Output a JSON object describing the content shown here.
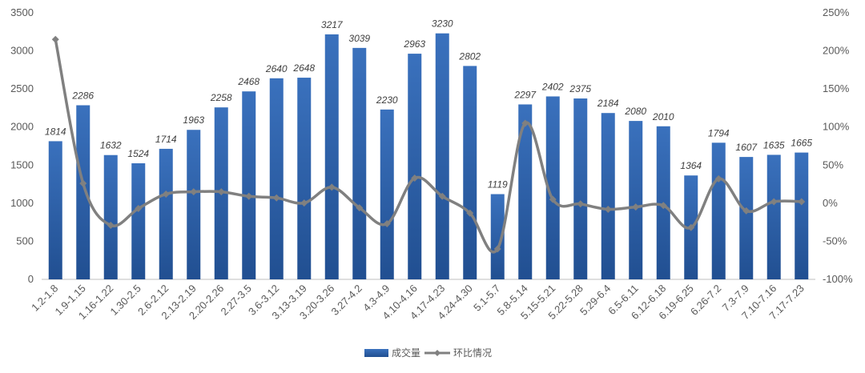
{
  "chart_data": {
    "type": "bar",
    "categories": [
      "1.2-1.8",
      "1.9-1.15",
      "1.16-1.22",
      "1.30-2.5",
      "2.6-2.12",
      "2.13-2.19",
      "2.20-2.26",
      "2.27-3.5",
      "3.6-3.12",
      "3.13-3.19",
      "3.20-3.26",
      "3.27-4.2",
      "4.3-4.9",
      "4.10-4.16",
      "4.17-4.23",
      "4.24-4.30",
      "5.1-5.7",
      "5.8-5.14",
      "5.15-5.21",
      "5.22-5.28",
      "5.29-6.4",
      "6.5-6.11",
      "6.12-6.18",
      "6.19-6.25",
      "6.26-7.2",
      "7.3-7.9",
      "7.10-7.16",
      "7.17-7.23"
    ],
    "series": [
      {
        "name": "成交量",
        "type": "bar",
        "axis": "left",
        "color": "#2E64AE",
        "values": [
          1814,
          2286,
          1632,
          1524,
          1714,
          1963,
          2258,
          2468,
          2640,
          2648,
          3217,
          3039,
          2230,
          2963,
          3230,
          2802,
          1119,
          2297,
          2402,
          2375,
          2184,
          2080,
          2010,
          1364,
          1794,
          1607,
          1635,
          1665
        ]
      },
      {
        "name": "环比情况",
        "type": "line",
        "axis": "right",
        "color": "#808080",
        "values": [
          2.15,
          0.26,
          -0.29,
          -0.07,
          0.12,
          0.15,
          0.15,
          0.09,
          0.07,
          0.003,
          0.21,
          -0.06,
          -0.27,
          0.33,
          0.09,
          -0.13,
          -0.6,
          1.05,
          0.05,
          -0.01,
          -0.08,
          -0.05,
          -0.03,
          -0.32,
          0.32,
          -0.1,
          0.02,
          0.02
        ]
      }
    ],
    "y_left": {
      "min": 0,
      "max": 3500,
      "ticks": [
        "0",
        "500",
        "1000",
        "1500",
        "2000",
        "2500",
        "3000",
        "3500"
      ]
    },
    "y_right": {
      "min": -1.0,
      "max": 2.5,
      "ticks": [
        "-100%",
        "-50%",
        "0%",
        "50%",
        "100%",
        "150%",
        "200%",
        "250%"
      ]
    },
    "grid": false,
    "legend_position": "bottom"
  }
}
